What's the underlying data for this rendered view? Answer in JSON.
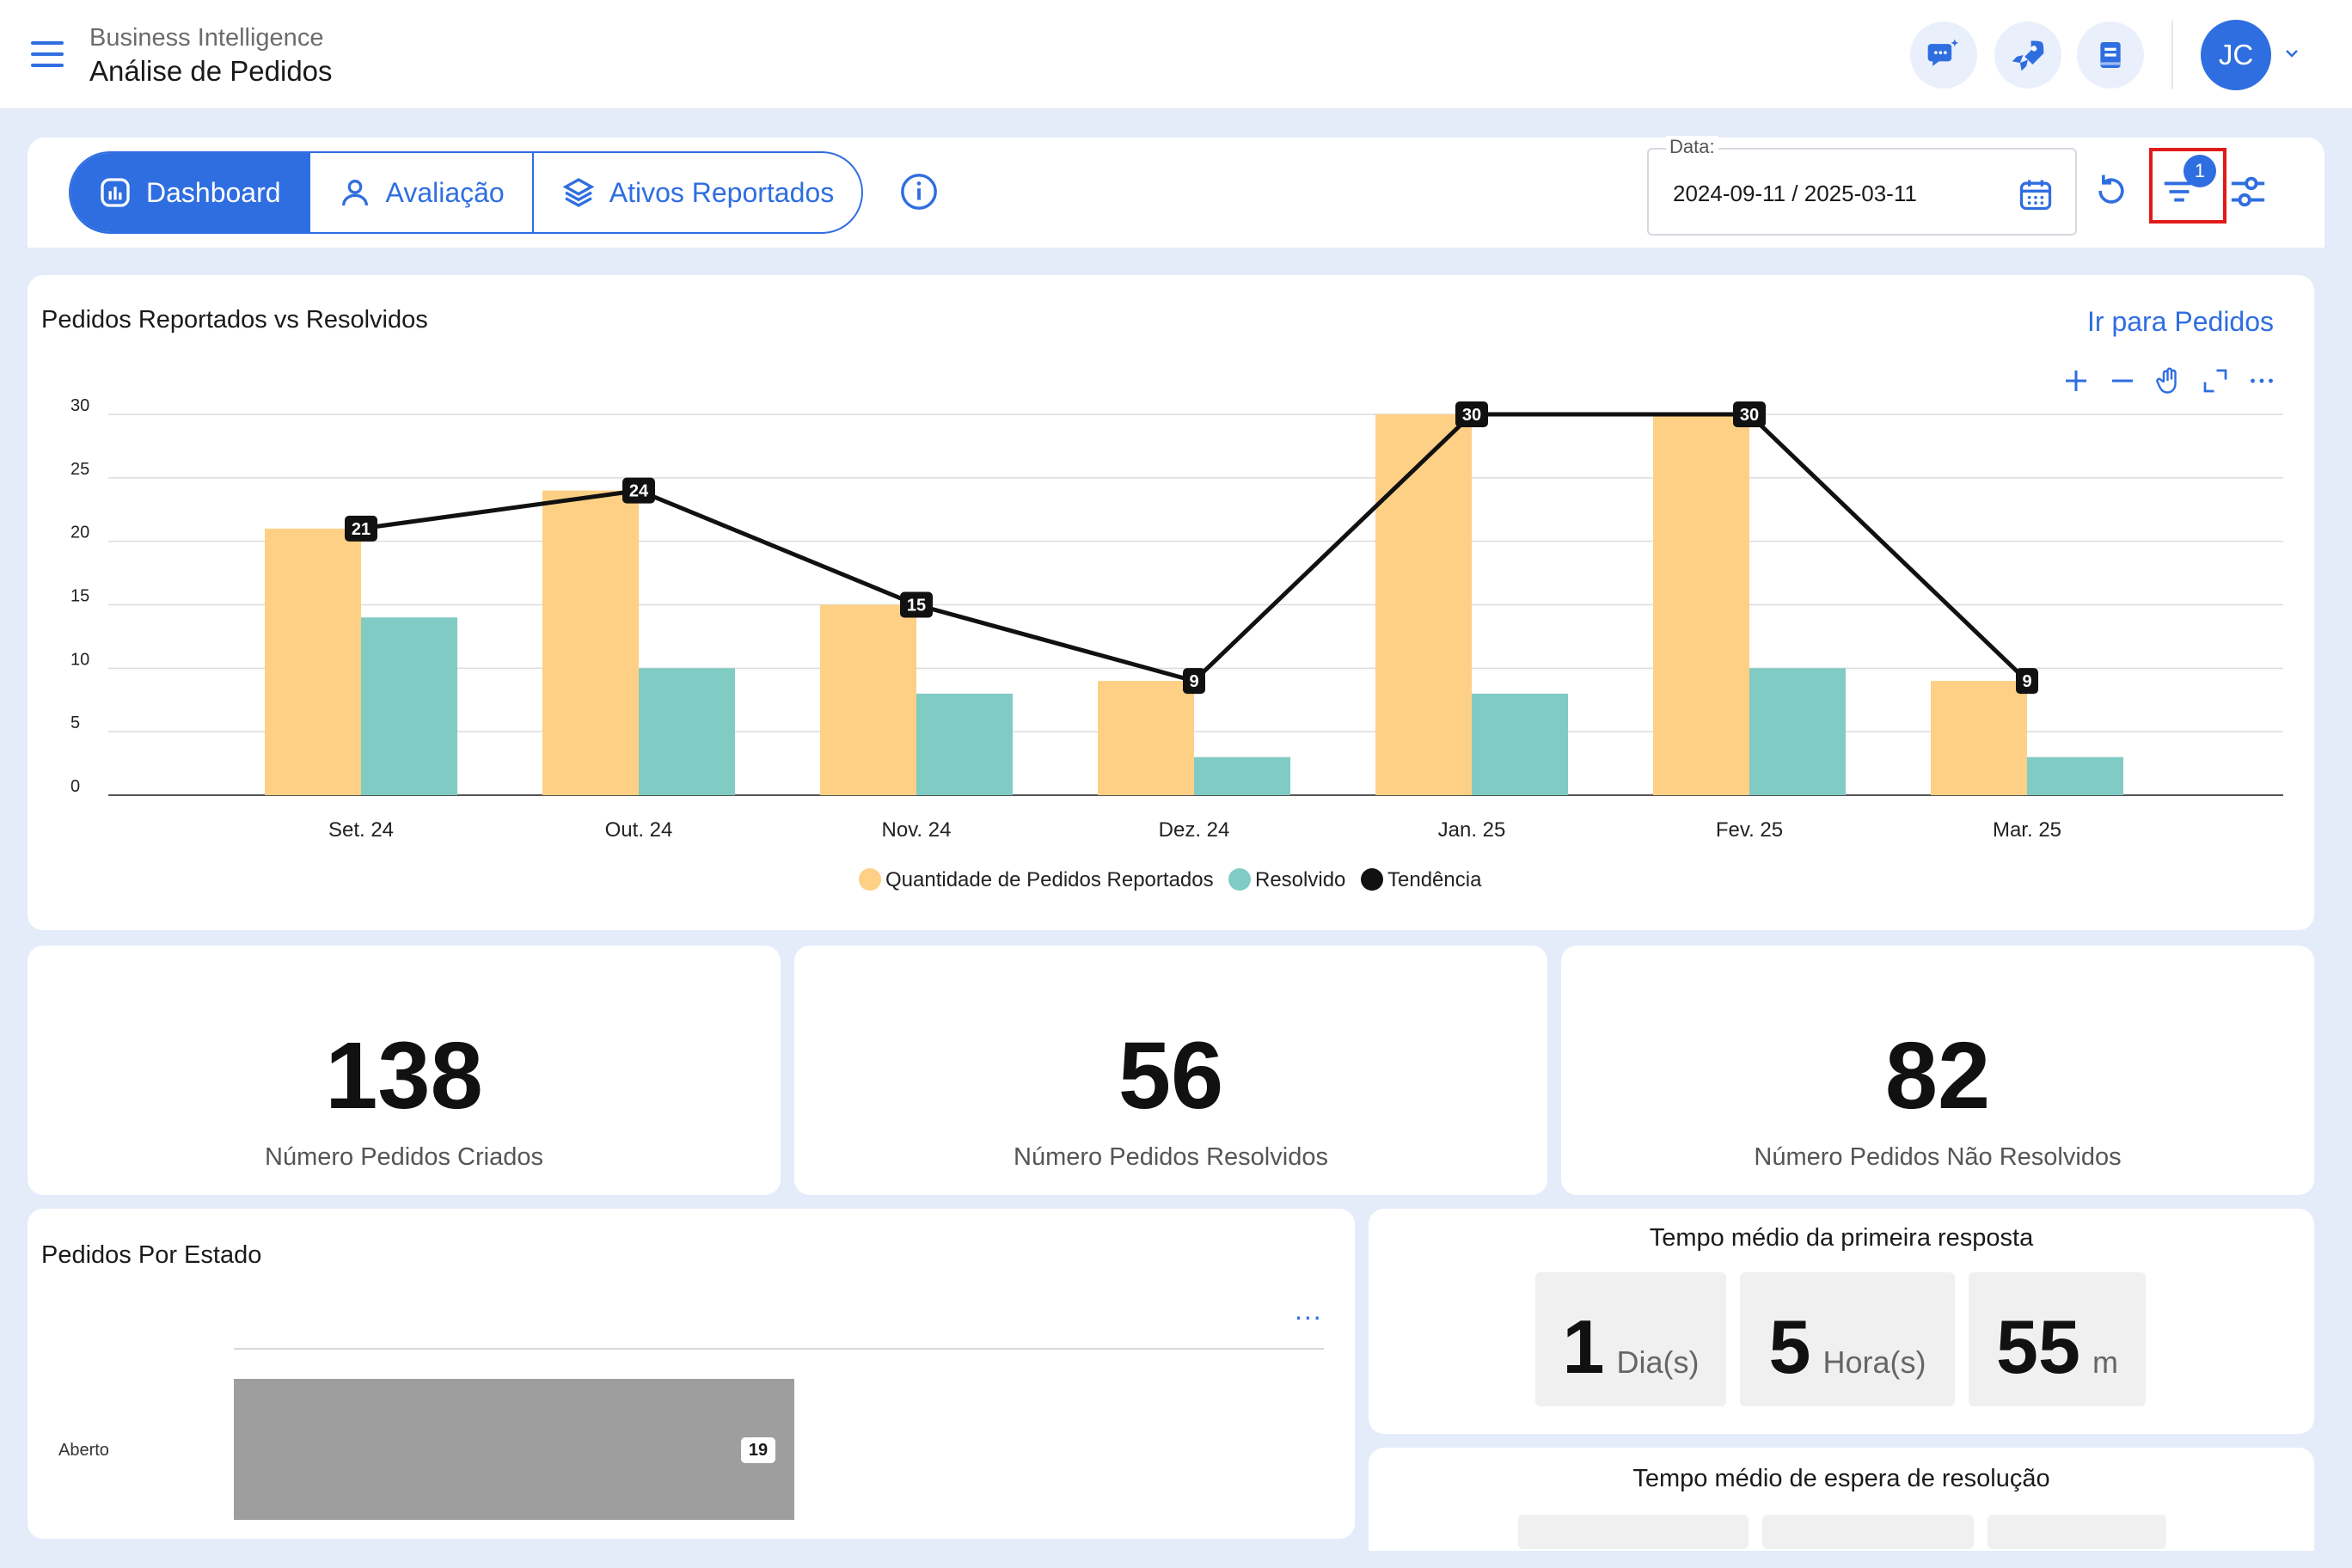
{
  "header": {
    "app_subtitle": "Business Intelligence",
    "page_title": "Análise de Pedidos",
    "avatar_initials": "JC",
    "accent_color": "#2f6ee0"
  },
  "tabs": [
    {
      "label": "Dashboard",
      "icon": "chart-icon",
      "active": true
    },
    {
      "label": "Avaliação",
      "icon": "user-icon",
      "active": false
    },
    {
      "label": "Ativos Reportados",
      "icon": "layers-icon",
      "active": false
    }
  ],
  "date_filter": {
    "label": "Data:",
    "value": "2024-09-11 / 2025-03-11"
  },
  "filter_badge": "1",
  "chart": {
    "title": "Pedidos Reportados vs Resolvidos",
    "link": "Ir para Pedidos"
  },
  "chart_data": {
    "type": "bar",
    "categories": [
      "Set. 24",
      "Out. 24",
      "Nov. 24",
      "Dez. 24",
      "Jan. 25",
      "Fev. 25",
      "Mar. 25"
    ],
    "series": [
      {
        "name": "Quantidade de Pedidos Reportados",
        "type": "bar",
        "color": "#fdd085",
        "values": [
          21,
          24,
          15,
          9,
          30,
          30,
          9
        ]
      },
      {
        "name": "Resolvido",
        "type": "bar",
        "color": "#80cbc4",
        "values": [
          14,
          10,
          8,
          3,
          8,
          10,
          3
        ]
      },
      {
        "name": "Tendência",
        "type": "line",
        "color": "#111111",
        "values": [
          21,
          24,
          15,
          9,
          30,
          30,
          9
        ]
      }
    ],
    "yticks": [
      "30",
      "25",
      "20",
      "15",
      "10",
      "5",
      "0"
    ],
    "ylim": [
      0,
      30
    ],
    "grid": true,
    "legend_position": "bottom"
  },
  "kpis": [
    {
      "value": "138",
      "label": "Número Pedidos Criados"
    },
    {
      "value": "56",
      "label": "Número Pedidos Resolvidos"
    },
    {
      "value": "82",
      "label": "Número Pedidos Não Resolvidos"
    }
  ],
  "state_chart": {
    "title": "Pedidos Por Estado",
    "more": "...",
    "bars": [
      {
        "label": "Aberto",
        "value": "19"
      }
    ]
  },
  "first_response": {
    "title": "Tempo médio da primeira resposta",
    "boxes": [
      {
        "num": "1",
        "unit": "Dia(s)"
      },
      {
        "num": "5",
        "unit": "Hora(s)"
      },
      {
        "num": "55",
        "unit": "m"
      }
    ]
  },
  "resolution_wait": {
    "title": "Tempo médio de espera de resolução"
  }
}
